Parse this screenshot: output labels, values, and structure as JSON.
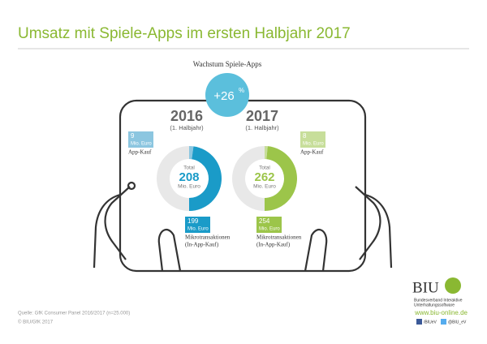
{
  "title": "Umsatz mit Spiele-Apps im ersten Halbjahr 2017",
  "growth": {
    "label": "Wachstum Spiele-Apps",
    "value": "+26",
    "unit": "%"
  },
  "panels": [
    {
      "year": "2016",
      "period": "(1. Halbjahr)",
      "color": "#1a9bc8",
      "light_color": "#8cc6e0",
      "app_kauf": {
        "value": 9,
        "unit": "Mio. Euro",
        "label": "App-Kauf"
      },
      "mikro": {
        "value": 199,
        "unit": "Mio. Euro",
        "label": "Mikrotransaktionen",
        "sublabel": "(In-App-Kauf)"
      },
      "total": {
        "label": "Total",
        "value": 208,
        "unit": "Mio. Euro"
      }
    },
    {
      "year": "2017",
      "period": "(1. Halbjahr)",
      "color": "#9cc54a",
      "light_color": "#c7de9a",
      "app_kauf": {
        "value": 8,
        "unit": "Mio. Euro",
        "label": "App-Kauf"
      },
      "mikro": {
        "value": 254,
        "unit": "Mio. Euro",
        "label": "Mikrotransaktionen",
        "sublabel": "(In-App-Kauf)"
      },
      "total": {
        "label": "Total",
        "value": 262,
        "unit": "Mio. Euro"
      }
    }
  ],
  "source": "Quelle: GfK Consumer Panel 2016/2017 (n=25.000)",
  "copyright": "© BIU/GfK 2017",
  "logo": {
    "name": "BIU",
    "line1": "Bundesverband Interaktive",
    "line2": "Unterhaltungssoftware",
    "url": "www.biu-online.de",
    "facebook": "/BIUeV",
    "twitter": "@BIU_eV"
  }
}
